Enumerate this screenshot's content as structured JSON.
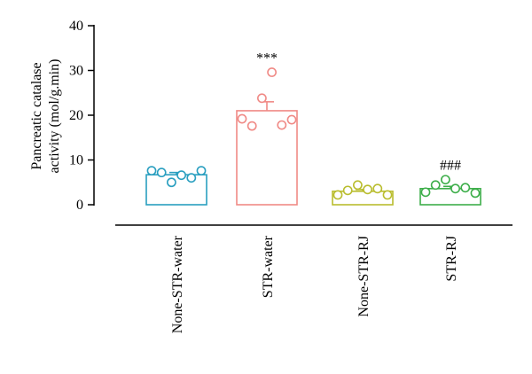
{
  "chart_data": {
    "type": "bar",
    "title": "",
    "xlabel": "",
    "ylabel_lines": [
      "Pancreatic catalase",
      "activity (mol/g.min)"
    ],
    "ylim": [
      0,
      40
    ],
    "yticks": [
      0,
      10,
      20,
      30,
      40
    ],
    "ytick_labels": [
      "0",
      "10",
      "20",
      "30",
      "40"
    ],
    "grid": false,
    "legend": "none",
    "categories": [
      "None-STR-water",
      "STR-water",
      "None-STR-RJ",
      "STR-RJ"
    ],
    "colors": [
      "#2a9fc0",
      "#f08a86",
      "#b9bd2e",
      "#3dae4a"
    ],
    "values": [
      6.7,
      21.0,
      3.0,
      3.6
    ],
    "errors": [
      0.5,
      2.0,
      0.4,
      0.5
    ],
    "points": [
      [
        7.6,
        7.2,
        5.0,
        6.6,
        6.0,
        7.6
      ],
      [
        19.2,
        17.6,
        23.8,
        29.6,
        17.8,
        19.0
      ],
      [
        2.2,
        3.2,
        4.4,
        3.4,
        3.6,
        2.2
      ],
      [
        2.8,
        4.4,
        5.6,
        3.6,
        3.8,
        2.6
      ]
    ],
    "significance": [
      "",
      "***",
      "",
      "###"
    ]
  }
}
